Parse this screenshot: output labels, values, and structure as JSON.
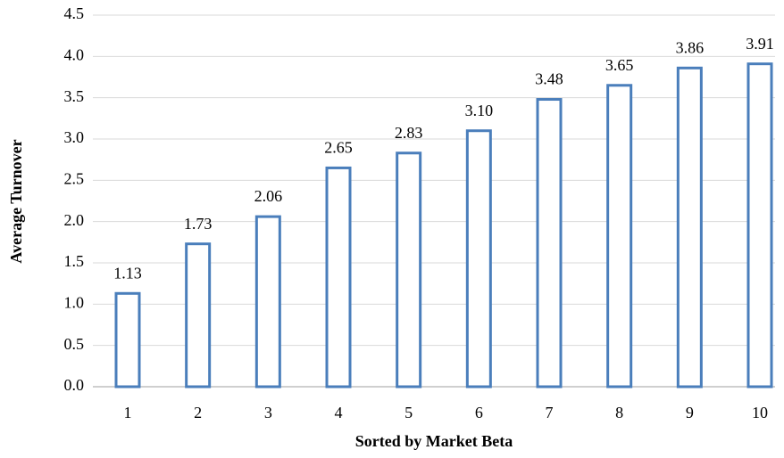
{
  "chart_data": {
    "type": "bar",
    "categories": [
      "1",
      "2",
      "3",
      "4",
      "5",
      "6",
      "7",
      "8",
      "9",
      "10"
    ],
    "values": [
      1.13,
      1.73,
      2.06,
      2.65,
      2.83,
      3.1,
      3.48,
      3.65,
      3.86,
      3.91
    ],
    "value_labels": [
      "1.13",
      "1.73",
      "2.06",
      "2.65",
      "2.83",
      "3.10",
      "3.48",
      "3.65",
      "3.86",
      "3.91"
    ],
    "color": "#4a7ebb",
    "xlabel": "Sorted by Market Beta",
    "ylabel": "Average Turnover",
    "ylim": [
      0,
      4.5
    ],
    "yticks": [
      {
        "value": 0,
        "label": "0.0"
      },
      0.5,
      {
        "value": 1,
        "label": "1.0"
      },
      1.5,
      {
        "value": 2,
        "label": "2.0"
      },
      2.5,
      {
        "value": 3,
        "label": "3.0"
      },
      3.5,
      {
        "value": 4,
        "label": "4.0"
      },
      4.5
    ],
    "grid": true
  }
}
